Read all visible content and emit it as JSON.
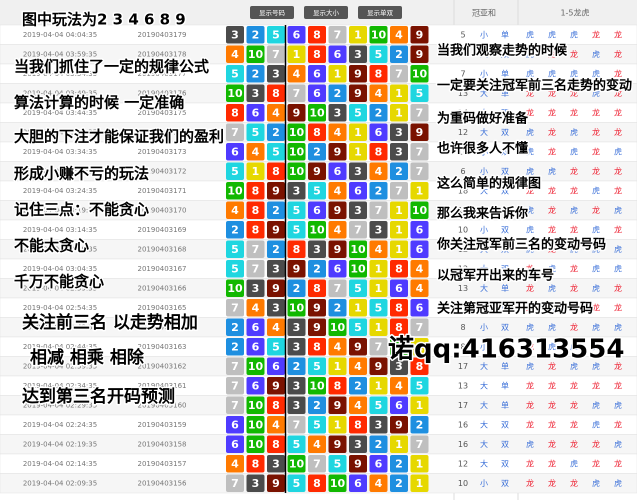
{
  "header": {
    "buttons": [
      "显示号码",
      "显示大小",
      "显示单双"
    ],
    "sum_title": "冠亚和",
    "dragon_tiger_title": "1-5龙虎"
  },
  "ball_colors": [
    "#e6d800",
    "#1e8fe0",
    "#4b4b4b",
    "#ff7a00",
    "#1fd6e0",
    "#4f3bff",
    "#bfbfbf",
    "#ff2a00",
    "#7a1200",
    "#11b800"
  ],
  "rows": [
    {
      "time": "2019-04-04 04:04:35",
      "issue": "20190403179",
      "numbers": [
        3,
        2,
        5,
        6,
        8,
        7,
        1,
        10,
        4,
        9
      ],
      "sum": 5,
      "size": "小",
      "parity": "单",
      "dragon_tiger": [
        "虎",
        "虎",
        "虎",
        "龙",
        "龙"
      ]
    },
    {
      "time": "2019-04-04 03:59:35",
      "issue": "20190403178",
      "numbers": [
        4,
        10,
        7,
        1,
        8,
        6,
        3,
        5,
        2,
        9
      ],
      "sum": 14,
      "size": "大",
      "parity": "双",
      "dragon_tiger": [
        "虎",
        "龙",
        "龙",
        "虎",
        "龙"
      ]
    },
    {
      "time": "2019-04-04 03:54:35",
      "issue": "20190403177",
      "numbers": [
        5,
        2,
        3,
        4,
        6,
        1,
        9,
        8,
        7,
        10
      ],
      "sum": 7,
      "size": "小",
      "parity": "单",
      "dragon_tiger": [
        "虎",
        "虎",
        "虎",
        "虎",
        "龙"
      ]
    },
    {
      "time": "2019-04-04 03:49:35",
      "issue": "20190403176",
      "numbers": [
        10,
        3,
        8,
        7,
        6,
        2,
        9,
        4,
        1,
        5
      ],
      "sum": 13,
      "size": "大",
      "parity": "单",
      "dragon_tiger": [
        "龙",
        "龙",
        "龙",
        "虎",
        "龙"
      ]
    },
    {
      "time": "2019-04-04 03:44:35",
      "issue": "20190403175",
      "numbers": [
        8,
        6,
        4,
        9,
        10,
        3,
        5,
        2,
        1,
        7
      ],
      "sum": 14,
      "size": "大",
      "parity": "双",
      "dragon_tiger": [
        "龙",
        "龙",
        "龙",
        "龙",
        "龙"
      ]
    },
    {
      "time": "2019-04-04 03:39:35",
      "issue": "20190403174",
      "numbers": [
        7,
        5,
        2,
        10,
        8,
        4,
        1,
        6,
        3,
        9
      ],
      "sum": 12,
      "size": "大",
      "parity": "双",
      "dragon_tiger": [
        "虎",
        "龙",
        "虎",
        "龙",
        "龙"
      ]
    },
    {
      "time": "2019-04-04 03:34:35",
      "issue": "20190403173",
      "numbers": [
        6,
        4,
        5,
        10,
        2,
        9,
        1,
        8,
        3,
        7
      ],
      "sum": 10,
      "size": "小",
      "parity": "双",
      "dragon_tiger": [
        "虎",
        "龙",
        "虎",
        "龙",
        "虎"
      ]
    },
    {
      "time": "2019-04-04 03:29:35",
      "issue": "20190403172",
      "numbers": [
        5,
        1,
        8,
        10,
        9,
        6,
        3,
        4,
        2,
        7
      ],
      "sum": 6,
      "size": "小",
      "parity": "双",
      "dragon_tiger": [
        "虎",
        "虎",
        "龙",
        "龙",
        "龙"
      ]
    },
    {
      "time": "2019-04-04 03:24:35",
      "issue": "20190403171",
      "numbers": [
        10,
        8,
        9,
        3,
        5,
        4,
        6,
        2,
        7,
        1
      ],
      "sum": 18,
      "size": "大",
      "parity": "双",
      "dragon_tiger": [
        "龙",
        "龙",
        "龙",
        "虎",
        "龙"
      ]
    },
    {
      "time": "2019-04-04 03:19:35",
      "issue": "20190403170",
      "numbers": [
        4,
        8,
        2,
        5,
        6,
        9,
        3,
        7,
        1,
        10
      ],
      "sum": 12,
      "size": "大",
      "parity": "双",
      "dragon_tiger": [
        "虎",
        "龙",
        "虎",
        "龙",
        "虎"
      ]
    },
    {
      "time": "2019-04-04 03:14:35",
      "issue": "20190403169",
      "numbers": [
        2,
        8,
        9,
        5,
        10,
        4,
        7,
        3,
        1,
        6
      ],
      "sum": 10,
      "size": "小",
      "parity": "双",
      "dragon_tiger": [
        "虎",
        "龙",
        "龙",
        "虎",
        "龙"
      ]
    },
    {
      "time": "2019-04-04 03:09:35",
      "issue": "20190403168",
      "numbers": [
        5,
        7,
        2,
        8,
        3,
        9,
        10,
        4,
        1,
        6
      ],
      "sum": 12,
      "size": "大",
      "parity": "双",
      "dragon_tiger": [
        "虎",
        "龙",
        "虎",
        "虎",
        "虎"
      ]
    },
    {
      "time": "2019-04-04 03:04:35",
      "issue": "20190403167",
      "numbers": [
        5,
        7,
        3,
        9,
        2,
        6,
        10,
        1,
        8,
        4
      ],
      "sum": 12,
      "size": "大",
      "parity": "双",
      "dragon_tiger": [
        "龙",
        "虎",
        "龙",
        "虎",
        "虎"
      ]
    },
    {
      "time": "2019-04-04 02:59:35",
      "issue": "20190403166",
      "numbers": [
        10,
        3,
        9,
        2,
        8,
        7,
        5,
        1,
        6,
        4
      ],
      "sum": 13,
      "size": "大",
      "parity": "单",
      "dragon_tiger": [
        "龙",
        "虎",
        "龙",
        "虎",
        "龙"
      ]
    },
    {
      "time": "2019-04-04 02:54:35",
      "issue": "20190403165",
      "numbers": [
        7,
        4,
        3,
        10,
        9,
        2,
        1,
        5,
        8,
        6
      ],
      "sum": 11,
      "size": "小",
      "parity": "单",
      "dragon_tiger": [
        "龙",
        "虎",
        "虎",
        "龙",
        "龙"
      ]
    },
    {
      "time": "2019-04-04 02:49:35",
      "issue": "20190403164",
      "numbers": [
        2,
        6,
        4,
        3,
        9,
        10,
        5,
        1,
        8,
        7
      ],
      "sum": 8,
      "size": "小",
      "parity": "双",
      "dragon_tiger": [
        "虎",
        "虎",
        "龙",
        "虎",
        "虎"
      ]
    },
    {
      "time": "2019-04-04 02:44:35",
      "issue": "20190403163",
      "numbers": [
        2,
        6,
        5,
        3,
        8,
        4,
        9,
        7,
        10,
        1
      ],
      "sum": 8,
      "size": "小",
      "parity": "双",
      "dragon_tiger": [
        "龙",
        "虎",
        "虎",
        "虎",
        "龙"
      ]
    },
    {
      "time": "2019-04-04 02:39:35",
      "issue": "20190403162",
      "numbers": [
        7,
        10,
        6,
        2,
        5,
        1,
        4,
        9,
        3,
        8
      ],
      "sum": 17,
      "size": "大",
      "parity": "单",
      "dragon_tiger": [
        "虎",
        "龙",
        "虎",
        "虎",
        "龙"
      ]
    },
    {
      "time": "2019-04-04 02:34:35",
      "issue": "20190403161",
      "numbers": [
        7,
        6,
        9,
        3,
        10,
        8,
        2,
        1,
        4,
        5
      ],
      "sum": 13,
      "size": "大",
      "parity": "单",
      "dragon_tiger": [
        "龙",
        "龙",
        "龙",
        "龙",
        "龙"
      ]
    },
    {
      "time": "2019-04-04 02:29:35",
      "issue": "20190403160",
      "numbers": [
        7,
        10,
        8,
        3,
        2,
        9,
        4,
        5,
        6,
        1
      ],
      "sum": 17,
      "size": "大",
      "parity": "单",
      "dragon_tiger": [
        "龙",
        "龙",
        "龙",
        "虎",
        "虎"
      ]
    },
    {
      "time": "2019-04-04 02:24:35",
      "issue": "20190403159",
      "numbers": [
        6,
        10,
        4,
        7,
        5,
        1,
        8,
        3,
        9,
        2
      ],
      "sum": 16,
      "size": "大",
      "parity": "双",
      "dragon_tiger": [
        "龙",
        "龙",
        "龙",
        "虎",
        "龙"
      ]
    },
    {
      "time": "2019-04-04 02:19:35",
      "issue": "20190403158",
      "numbers": [
        6,
        10,
        8,
        5,
        4,
        9,
        3,
        2,
        1,
        7
      ],
      "sum": 16,
      "size": "大",
      "parity": "双",
      "dragon_tiger": [
        "虎",
        "龙",
        "龙",
        "龙",
        "虎"
      ]
    },
    {
      "time": "2019-04-04 02:14:35",
      "issue": "20190403157",
      "numbers": [
        4,
        8,
        3,
        10,
        7,
        5,
        9,
        6,
        2,
        1
      ],
      "sum": 12,
      "size": "大",
      "parity": "双",
      "dragon_tiger": [
        "龙",
        "龙",
        "虎",
        "龙",
        "龙"
      ]
    },
    {
      "time": "2019-04-04 02:09:35",
      "issue": "20190403156",
      "numbers": [
        7,
        3,
        9,
        5,
        8,
        10,
        6,
        4,
        2,
        1
      ],
      "sum": 10,
      "size": "小",
      "parity": "双",
      "dragon_tiger": [
        "龙",
        "龙",
        "龙",
        "虎",
        "虎"
      ]
    }
  ],
  "overlay": {
    "left": [
      "图中玩法为2 3 4 6 8 9",
      "当我们抓住了一定的规律公式",
      "算法计算的时候 一定准确",
      "大胆的下注才能保证我们的盈利",
      "形成小赚不亏的玩法",
      "记住三点：不能贪心",
      "不能太贪心",
      "千万不能贪心",
      "关注前三名 以走势相加",
      "相减 相乘 相除",
      "达到第三名开码预测"
    ],
    "right": [
      "当我们观察走势的时候",
      "一定要关注冠军前三名走势的变动",
      "为重码做好准备",
      "也许很多人不懂",
      "这么简单的规律图",
      "那么我来告诉你",
      "你关注冠军前三名的变动号码",
      "以冠军开出来的车号",
      "关注第冠亚军开的变动号码"
    ],
    "contact": "诺qq:416313554"
  }
}
